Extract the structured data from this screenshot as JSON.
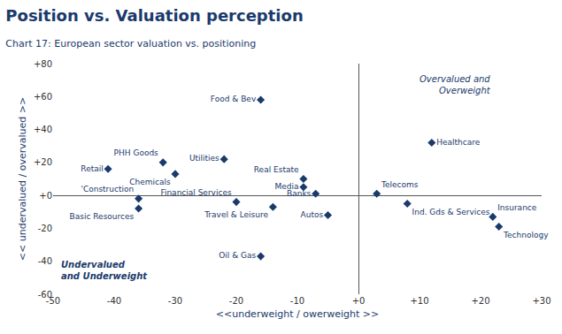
{
  "chart_data": {
    "type": "scatter",
    "title": "Position vs. Valuation perception",
    "subtitle": "Chart 17: European sector valuation vs. positioning",
    "xlabel": "<<underweight / owerweight >>",
    "ylabel": "<< undervalued / overvalued >>",
    "labels": [
      "Food & Bev",
      "Healthcare",
      "Retail",
      "PHH Goods",
      "Chemicals",
      "Utilities",
      "Real Estate",
      "Media",
      "Banks",
      "Telecoms",
      "'Construction",
      "Basic Resources",
      "Financial Services",
      "Travel & Leisure",
      "Autos",
      "Ind. Gds & Services",
      "Insurance",
      "Technology",
      "Oil & Gas"
    ],
    "x": [
      -16,
      12,
      -41,
      -32,
      -30,
      -22,
      -9,
      -9,
      -7,
      3,
      -36,
      -36,
      -20,
      -14,
      -5,
      8,
      22,
      23,
      -16
    ],
    "values": [
      58,
      32,
      16,
      20,
      13,
      22,
      10,
      5,
      1,
      1,
      -2,
      -8,
      -4,
      -7,
      -12,
      -5,
      -13,
      -19,
      -37
    ],
    "annotations": [
      "Overvalued and\nOverweight",
      "Undervalued\nand Underweight"
    ],
    "color": "#1a3a6b",
    "marker": "diamond",
    "grid": false,
    "xlim": [
      -50,
      30
    ],
    "ylim": [
      -60,
      80
    ],
    "xticks": [
      -50,
      -40,
      -30,
      -20,
      -10,
      {
        "value": 0,
        "label": "+0"
      },
      {
        "value": 10,
        "label": "+10"
      },
      {
        "value": 20,
        "label": "+20"
      },
      {
        "value": 30,
        "label": "+30"
      }
    ],
    "yticks": [
      -60,
      -40,
      -20,
      {
        "value": 0,
        "label": "+0"
      },
      {
        "value": 20,
        "label": "+20"
      },
      {
        "value": 40,
        "label": "+40"
      },
      {
        "value": 60,
        "label": "+60"
      },
      {
        "value": 80,
        "label": "+80"
      }
    ]
  }
}
